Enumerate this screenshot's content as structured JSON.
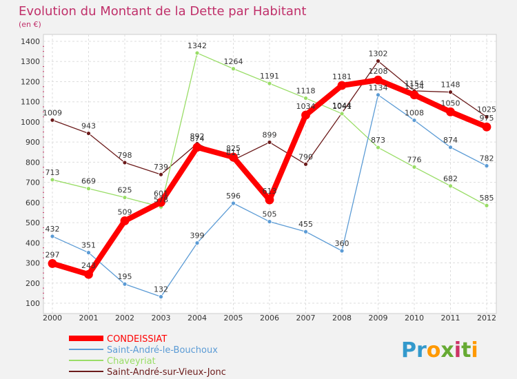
{
  "chart_data": {
    "type": "line",
    "title": "Evolution du Montant de la Dette par Habitant",
    "subtitle": "(en €)",
    "x": [
      "2000",
      "2001",
      "2002",
      "2003",
      "2004",
      "2005",
      "2006",
      "2007",
      "2008",
      "2009",
      "2010",
      "2011",
      "2012"
    ],
    "ylim": [
      100,
      1400
    ],
    "yticks": [
      100,
      200,
      300,
      400,
      500,
      600,
      700,
      800,
      900,
      1000,
      1100,
      1200,
      1300,
      1400
    ],
    "grid": true,
    "legend_position": "bottom-left",
    "series": [
      {
        "name": "Saint-André-sur-Vieux-Jonc",
        "color": "#6b1a1a",
        "values": [
          1009,
          943,
          798,
          739,
          892,
          811,
          899,
          790,
          1044,
          1302,
          1154,
          1148,
          1025
        ]
      },
      {
        "name": "Chaveyriat",
        "color": "#99dd66",
        "values": [
          713,
          669,
          625,
          578,
          1342,
          1264,
          1191,
          1118,
          1041,
          873,
          776,
          682,
          585
        ]
      },
      {
        "name": "Saint-André-le-Bouchoux",
        "color": "#5b9bd5",
        "values": [
          432,
          351,
          195,
          132,
          399,
          596,
          505,
          455,
          360,
          1134,
          1008,
          874,
          782
        ]
      },
      {
        "name": "CONDEISSIAT",
        "color": "#ff0000",
        "values": [
          297,
          243,
          509,
          601,
          874,
          825,
          613,
          1034,
          1181,
          1208,
          1134,
          1050,
          975
        ]
      }
    ],
    "legend_order": [
      "CONDEISSIAT",
      "Saint-André-le-Bouchoux",
      "Chaveyriat",
      "Saint-André-sur-Vieux-Jonc"
    ]
  },
  "logo": {
    "text": "Proxiti",
    "letters": [
      "P",
      "r",
      "o",
      "x",
      "i",
      "t",
      "i"
    ],
    "colors": [
      "#3399cc",
      "#3399cc",
      "#ff9900",
      "#66aa33",
      "#cc3366",
      "#66aa33",
      "#ff9900"
    ]
  }
}
